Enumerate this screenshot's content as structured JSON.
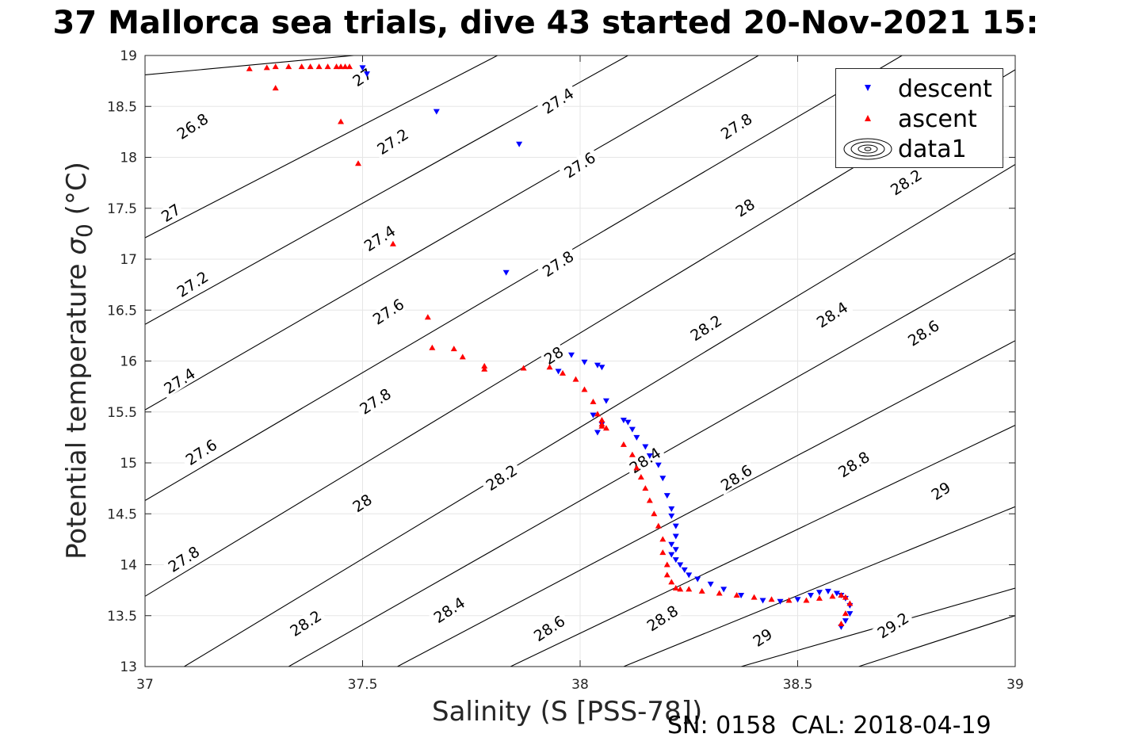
{
  "title": "37 Mallorca sea trials, dive 43 started 20-Nov-2021 15:",
  "xlabel": "Salinity (S [PSS-78])",
  "ylabel_main": "Potential temperature ",
  "ylabel_sigma": "σ",
  "ylabel_sub": "0",
  "ylabel_unit": " (°C)",
  "footer": "SN: 0158  CAL: 2018-04-19",
  "colors": {
    "descent": "#0000ff",
    "ascent": "#ff0000",
    "contour": "#000000",
    "grid": "#e6e6e6"
  },
  "legend": [
    {
      "label": "descent",
      "marker": "down-triangle-icon",
      "color": "#0000ff"
    },
    {
      "label": "ascent",
      "marker": "up-triangle-icon",
      "color": "#ff0000"
    },
    {
      "label": "data1",
      "marker": "contour-ellipse-icon",
      "color": "#000000"
    }
  ],
  "chart_data": {
    "type": "scatter",
    "xlim": [
      37,
      39
    ],
    "ylim": [
      13,
      19
    ],
    "xticks": [
      "37",
      "37.5",
      "38",
      "38.5",
      "39"
    ],
    "yticks": [
      "13",
      "13.5",
      "14",
      "14.5",
      "15",
      "15.5",
      "16",
      "16.5",
      "17",
      "17.5",
      "18",
      "18.5",
      "19"
    ],
    "grid": true,
    "legend_position": "top-right",
    "contours": {
      "description_levels": [
        26.8,
        27,
        27.2,
        27.4,
        27.6,
        27.8,
        28,
        28.2,
        28.4,
        28.6,
        28.8,
        29,
        29.2
      ],
      "lines": [
        {
          "level": 26.8,
          "x": [
            37.0,
            37.48
          ],
          "y": [
            18.81,
            19.0
          ]
        },
        {
          "level": 27.0,
          "x": [
            37.0,
            37.81
          ],
          "y": [
            17.21,
            19.0
          ]
        },
        {
          "level": 27.2,
          "x": [
            37.0,
            38.11
          ],
          "y": [
            16.36,
            19.0
          ]
        },
        {
          "level": 27.4,
          "x": [
            37.0,
            38.41
          ],
          "y": [
            15.52,
            19.0
          ]
        },
        {
          "level": 27.6,
          "x": [
            37.0,
            38.74
          ],
          "y": [
            14.63,
            19.0
          ]
        },
        {
          "level": 27.8,
          "x": [
            37.0,
            39.0
          ],
          "y": [
            13.69,
            18.86
          ]
        },
        {
          "level": 28.0,
          "x": [
            37.09,
            39.0
          ],
          "y": [
            13.0,
            17.93
          ]
        },
        {
          "level": 28.2,
          "x": [
            37.33,
            39.0
          ],
          "y": [
            13.0,
            17.06
          ]
        },
        {
          "level": 28.4,
          "x": [
            37.58,
            39.0
          ],
          "y": [
            13.0,
            16.2
          ]
        },
        {
          "level": 28.6,
          "x": [
            37.84,
            39.0
          ],
          "y": [
            13.0,
            15.37
          ]
        },
        {
          "level": 28.8,
          "x": [
            38.1,
            39.0
          ],
          "y": [
            13.0,
            14.57
          ]
        },
        {
          "level": 29.0,
          "x": [
            38.37,
            39.0
          ],
          "y": [
            13.0,
            13.77
          ]
        },
        {
          "level": 29.2,
          "x": [
            38.64,
            39.0
          ],
          "y": [
            13.0,
            13.5
          ]
        }
      ],
      "labels": [
        {
          "text": "26.8",
          "x": 37.11,
          "y": 18.3
        },
        {
          "text": "27",
          "x": 37.5,
          "y": 18.78
        },
        {
          "text": "27",
          "x": 37.06,
          "y": 17.45
        },
        {
          "text": "27.2",
          "x": 37.57,
          "y": 18.15
        },
        {
          "text": "27.2",
          "x": 37.11,
          "y": 16.75
        },
        {
          "text": "27.4",
          "x": 37.95,
          "y": 18.55
        },
        {
          "text": "27.4",
          "x": 37.54,
          "y": 17.2
        },
        {
          "text": "27.4",
          "x": 37.08,
          "y": 15.8
        },
        {
          "text": "27.6",
          "x": 38.0,
          "y": 17.92
        },
        {
          "text": "27.6",
          "x": 37.56,
          "y": 16.48
        },
        {
          "text": "27.6",
          "x": 37.13,
          "y": 15.1
        },
        {
          "text": "27.8",
          "x": 38.36,
          "y": 18.3
        },
        {
          "text": "27.8",
          "x": 37.95,
          "y": 16.95
        },
        {
          "text": "27.8",
          "x": 37.53,
          "y": 15.6
        },
        {
          "text": "27.8",
          "x": 37.09,
          "y": 14.05
        },
        {
          "text": "28",
          "x": 38.38,
          "y": 17.5
        },
        {
          "text": "28",
          "x": 37.94,
          "y": 16.05
        },
        {
          "text": "28",
          "x": 37.5,
          "y": 14.6
        },
        {
          "text": "28.2",
          "x": 38.75,
          "y": 17.75
        },
        {
          "text": "28.2",
          "x": 38.29,
          "y": 16.32
        },
        {
          "text": "28.2",
          "x": 37.82,
          "y": 14.85
        },
        {
          "text": "28.2",
          "x": 37.37,
          "y": 13.42
        },
        {
          "text": "28.4",
          "x": 38.58,
          "y": 16.45
        },
        {
          "text": "28.4",
          "x": 38.15,
          "y": 15.02
        },
        {
          "text": "28.4",
          "x": 37.7,
          "y": 13.55
        },
        {
          "text": "28.6",
          "x": 38.79,
          "y": 16.27
        },
        {
          "text": "28.6",
          "x": 38.36,
          "y": 14.85
        },
        {
          "text": "28.6",
          "x": 37.93,
          "y": 13.37
        },
        {
          "text": "28.8",
          "x": 38.63,
          "y": 14.98
        },
        {
          "text": "28.8",
          "x": 38.19,
          "y": 13.47
        },
        {
          "text": "29",
          "x": 38.83,
          "y": 14.72
        },
        {
          "text": "29",
          "x": 38.42,
          "y": 13.28
        },
        {
          "text": "29.2",
          "x": 38.72,
          "y": 13.4
        }
      ]
    },
    "series": [
      {
        "name": "descent",
        "marker": "v",
        "color": "#0000ff",
        "x": [
          37.5,
          37.51,
          37.67,
          37.86,
          37.83,
          37.98,
          38.01,
          38.04,
          38.05,
          38.06,
          37.95,
          38.03,
          38.04,
          38.05,
          38.1,
          38.11,
          38.12,
          38.13,
          38.15,
          38.16,
          38.18,
          38.19,
          38.2,
          38.21,
          38.21,
          38.22,
          38.22,
          38.21,
          38.22,
          38.21,
          38.22,
          38.23,
          38.24,
          38.25,
          38.27,
          38.3,
          38.33,
          38.37,
          38.42,
          38.46,
          38.5,
          38.53,
          38.55,
          38.57,
          38.59,
          38.6,
          38.61,
          38.62,
          38.62,
          38.61,
          38.6
        ],
        "y": [
          18.88,
          18.82,
          18.45,
          18.13,
          16.87,
          16.06,
          15.99,
          15.96,
          15.94,
          15.61,
          15.9,
          15.47,
          15.3,
          15.38,
          15.42,
          15.4,
          15.33,
          15.25,
          15.16,
          15.07,
          14.98,
          14.85,
          14.68,
          14.55,
          14.48,
          14.38,
          14.28,
          14.2,
          14.15,
          14.1,
          14.05,
          14.0,
          13.95,
          13.9,
          13.86,
          13.81,
          13.76,
          13.7,
          13.65,
          13.64,
          13.66,
          13.7,
          13.73,
          13.74,
          13.72,
          13.7,
          13.67,
          13.6,
          13.52,
          13.45,
          13.39
        ]
      },
      {
        "name": "ascent",
        "marker": "^",
        "color": "#ff0000",
        "x": [
          37.24,
          37.28,
          37.3,
          37.33,
          37.36,
          37.38,
          37.4,
          37.42,
          37.44,
          37.45,
          37.46,
          37.47,
          37.3,
          37.45,
          37.49,
          37.57,
          37.65,
          37.66,
          37.71,
          37.73,
          37.78,
          37.78,
          37.87,
          37.93,
          37.96,
          37.99,
          38.01,
          38.03,
          38.04,
          38.05,
          38.05,
          38.06,
          38.05,
          38.1,
          38.12,
          38.13,
          38.14,
          38.15,
          38.16,
          38.17,
          38.18,
          38.19,
          38.19,
          38.2,
          38.2,
          38.21,
          38.22,
          38.23,
          38.25,
          38.28,
          38.32,
          38.36,
          38.4,
          38.44,
          38.48,
          38.52,
          38.55,
          38.58,
          38.6,
          38.61,
          38.62,
          38.61,
          38.6
        ],
        "y": [
          18.87,
          18.88,
          18.89,
          18.89,
          18.89,
          18.89,
          18.89,
          18.89,
          18.89,
          18.89,
          18.89,
          18.89,
          18.68,
          18.35,
          17.94,
          17.15,
          16.43,
          16.13,
          16.12,
          16.04,
          15.95,
          15.92,
          15.93,
          15.94,
          15.88,
          15.82,
          15.72,
          15.6,
          15.48,
          15.42,
          15.36,
          15.34,
          15.38,
          15.18,
          15.08,
          14.95,
          14.86,
          14.75,
          14.63,
          14.5,
          14.38,
          14.25,
          14.12,
          14.0,
          13.9,
          13.83,
          13.77,
          13.76,
          13.76,
          13.74,
          13.72,
          13.7,
          13.68,
          13.66,
          13.65,
          13.65,
          13.67,
          13.69,
          13.7,
          13.68,
          13.62,
          13.52,
          13.42
        ]
      }
    ]
  }
}
